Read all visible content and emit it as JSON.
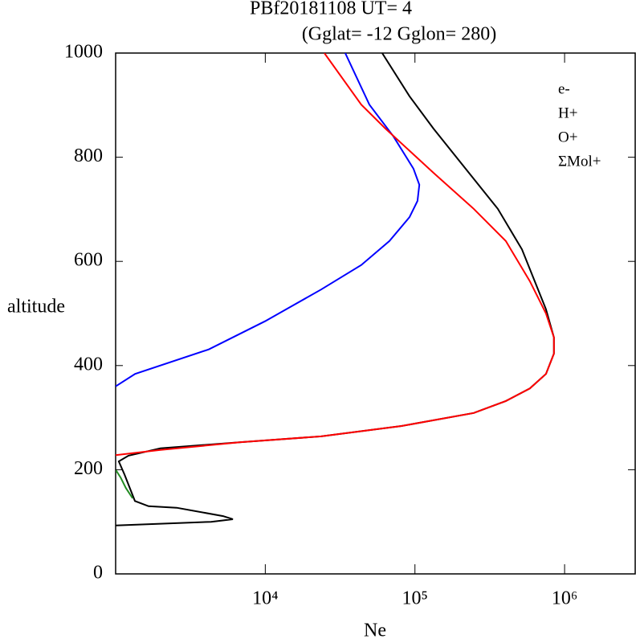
{
  "chart_data": {
    "type": "line",
    "title": "PBf20181108   UT=  4",
    "subtitle": "(Gglat= -12   Gglon=  280)",
    "x_label": "Ne",
    "y_label": "altitude",
    "x_scale": "log",
    "xlim": [
      1000,
      3000000
    ],
    "ylim": [
      0,
      1000
    ],
    "xticks": [
      {
        "value": 10000,
        "label": "10⁴"
      },
      {
        "value": 100000,
        "label": "10⁵"
      },
      {
        "value": 1000000,
        "label": "10⁶"
      }
    ],
    "yticks": [
      0,
      200,
      400,
      600,
      800,
      1000
    ],
    "legend": "upper right",
    "series": [
      {
        "name": "e-",
        "color": "#000000",
        "x": [
          1000,
          4347,
          6074,
          5226,
          2556,
          1659,
          1345,
          1146,
          1050,
          1218,
          1996,
          6865,
          23600,
          81300,
          247000,
          405000,
          586000,
          751000,
          849000,
          849000,
          751000,
          519000,
          358000,
          218000,
          133000,
          92000,
          60400
        ],
        "values": [
          93,
          100,
          105,
          111,
          127,
          130,
          140,
          191,
          216,
          227,
          241,
          253,
          264,
          284,
          309,
          332,
          356,
          384,
          423,
          454,
          508,
          623,
          701,
          778,
          855,
          917,
          1000
        ]
      },
      {
        "name": "H+",
        "color": "#0000ff",
        "x": [
          1000,
          1350,
          4190,
          9950,
          23600,
          43800,
          67500,
          92000,
          104000,
          107000,
          97800,
          71800,
          49600,
          34200
        ],
        "values": [
          360,
          384,
          431,
          485,
          546,
          593,
          639,
          685,
          716,
          747,
          778,
          840,
          901,
          1000
        ]
      },
      {
        "name": "O+",
        "color": "#ff0000",
        "x": [
          1000,
          1996,
          6865,
          23600,
          81300,
          247000,
          405000,
          586000,
          751000,
          849000,
          849000,
          751000,
          586000,
          405000,
          247000,
          133000,
          63500,
          43800,
          24800
        ],
        "values": [
          228,
          238,
          253,
          264,
          284,
          309,
          332,
          356,
          384,
          423,
          454,
          500,
          562,
          639,
          701,
          770,
          855,
          901,
          1000
        ]
      },
      {
        "name": "ΣMol+",
        "color": "#228b22",
        "x": [
          1000,
          1080,
          1170,
          1300
        ],
        "values": [
          200,
          185,
          165,
          145
        ]
      }
    ]
  }
}
